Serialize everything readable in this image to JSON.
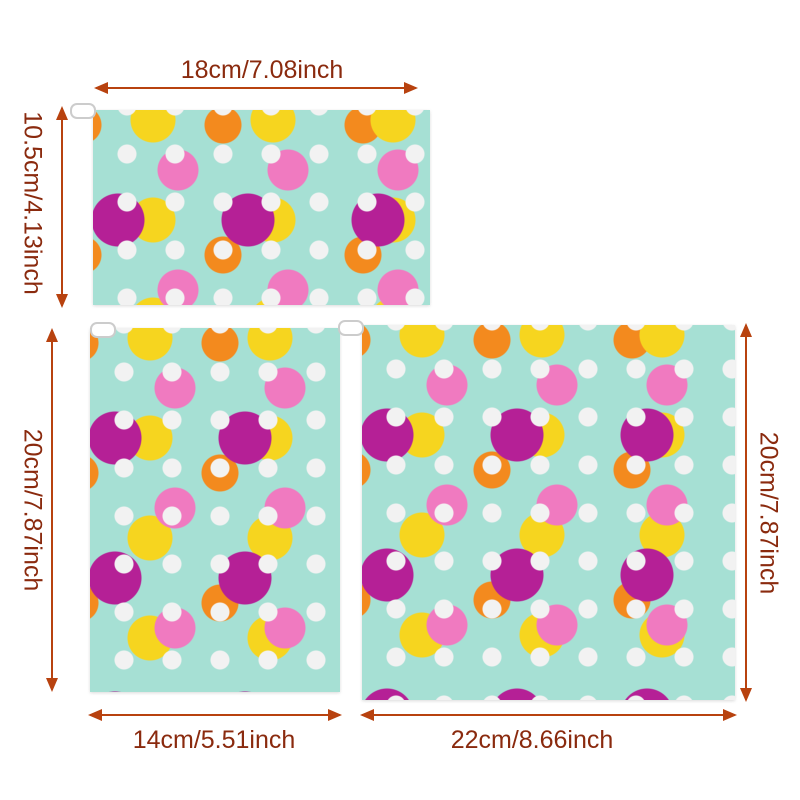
{
  "dimensions": {
    "small_width": "18cm/7.08inch",
    "small_height": "10.5cm/4.13inch",
    "medium_height": "20cm/7.87inch",
    "medium_width": "14cm/5.51inch",
    "large_height": "20cm/7.87inch",
    "large_width": "22cm/8.66inch"
  },
  "colors": {
    "label": "#8a2a0e",
    "arrow": "#b8420f",
    "fabric": "#a6e0d4"
  }
}
